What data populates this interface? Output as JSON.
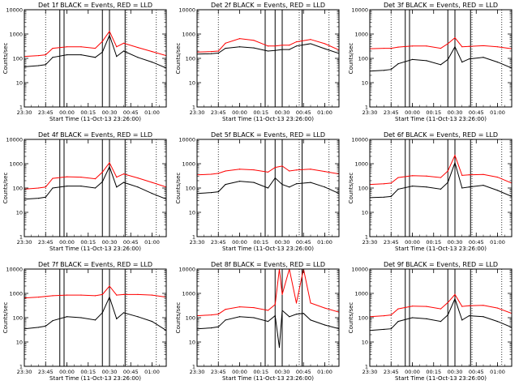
{
  "figure": {
    "ylabel": "Counts/sec",
    "xlabel": "Start Time (11-Oct-13 23:26:00)",
    "x_ticks": [
      "23:30",
      "23:45",
      "00:00",
      "00:15",
      "00:30",
      "00:45",
      "01:00"
    ],
    "y_ticks": [
      "1",
      "10",
      "100",
      "1000",
      "10000"
    ],
    "colors": {
      "events": "#000000",
      "lld": "#ff0000",
      "axes": "#000000"
    }
  },
  "chart_data": [
    {
      "type": "line",
      "title": "Det 1f BLACK = Events, RED = LLD",
      "yscale": "log",
      "ylim": [
        1,
        10000
      ],
      "xlim": [
        "23:30",
        "01:10"
      ],
      "x": [
        "23:30",
        "23:40",
        "23:45",
        "23:50",
        "00:00",
        "00:10",
        "00:20",
        "00:25",
        "00:30",
        "00:35",
        "00:40",
        "00:50",
        "01:00",
        "01:10"
      ],
      "series": [
        {
          "values": [
            45,
            50,
            55,
            110,
            140,
            140,
            110,
            180,
            900,
            120,
            200,
            110,
            70,
            40
          ]
        },
        {
          "values": [
            120,
            130,
            140,
            260,
            300,
            300,
            260,
            500,
            1300,
            300,
            420,
            280,
            190,
            130
          ]
        }
      ],
      "overlays": {
        "vertical_solid": [
          "23:55",
          "23:58",
          "00:25",
          "00:30",
          "00:41"
        ],
        "vertical_dotted": [
          "23:45",
          "00:42",
          "01:03"
        ]
      }
    },
    {
      "type": "line",
      "title": "Det 2f BLACK = Events, RED = LLD",
      "yscale": "log",
      "ylim": [
        1,
        10000
      ],
      "xlim": [
        "23:30",
        "01:10"
      ],
      "x": [
        "23:30",
        "23:40",
        "23:45",
        "23:50",
        "00:00",
        "00:10",
        "00:20",
        "00:25",
        "00:30",
        "00:35",
        "00:40",
        "00:50",
        "01:00",
        "01:10"
      ],
      "series": [
        {
          "values": [
            150,
            155,
            165,
            260,
            300,
            270,
            200,
            210,
            230,
            230,
            320,
            400,
            250,
            160
          ]
        },
        {
          "values": [
            180,
            190,
            200,
            420,
            650,
            550,
            320,
            320,
            350,
            350,
            480,
            600,
            400,
            220
          ]
        }
      ],
      "overlays": {
        "vertical_solid": [
          "00:18",
          "00:25",
          "00:30",
          "00:44"
        ],
        "vertical_dotted": [
          "23:45",
          "00:42",
          "01:03"
        ]
      }
    },
    {
      "type": "line",
      "title": "Det 3f BLACK = Events, RED = LLD",
      "yscale": "log",
      "ylim": [
        1,
        10000
      ],
      "xlim": [
        "23:30",
        "01:10"
      ],
      "x": [
        "23:30",
        "23:40",
        "23:45",
        "23:50",
        "00:00",
        "00:10",
        "00:20",
        "00:25",
        "00:30",
        "00:35",
        "00:40",
        "00:50",
        "01:00",
        "01:10"
      ],
      "series": [
        {
          "values": [
            30,
            32,
            35,
            60,
            90,
            80,
            55,
            90,
            300,
            70,
            95,
            110,
            70,
            40
          ]
        },
        {
          "values": [
            250,
            260,
            260,
            290,
            320,
            320,
            260,
            400,
            700,
            300,
            310,
            330,
            300,
            250
          ]
        }
      ],
      "overlays": {
        "vertical_solid": [
          "23:55",
          "23:58",
          "00:25",
          "00:30",
          "00:41"
        ],
        "vertical_dotted": [
          "23:45",
          "00:42",
          "01:03"
        ]
      }
    },
    {
      "type": "line",
      "title": "Det 4f BLACK = Events, RED = LLD",
      "yscale": "log",
      "ylim": [
        1,
        10000
      ],
      "xlim": [
        "23:30",
        "01:10"
      ],
      "x": [
        "23:30",
        "23:40",
        "23:45",
        "23:50",
        "00:00",
        "00:10",
        "00:20",
        "00:25",
        "00:30",
        "00:35",
        "00:40",
        "00:50",
        "01:00",
        "01:10"
      ],
      "series": [
        {
          "values": [
            35,
            38,
            42,
            100,
            120,
            120,
            100,
            180,
            750,
            110,
            170,
            110,
            60,
            35
          ]
        },
        {
          "values": [
            90,
            100,
            110,
            250,
            290,
            280,
            240,
            450,
            1100,
            280,
            380,
            260,
            170,
            110
          ]
        }
      ],
      "overlays": {
        "vertical_solid": [
          "23:55",
          "23:58",
          "00:25",
          "00:30",
          "00:41"
        ],
        "vertical_dotted": [
          "23:45",
          "00:42",
          "01:03"
        ]
      }
    },
    {
      "type": "line",
      "title": "Det 5f BLACK = Events, RED = LLD",
      "yscale": "log",
      "ylim": [
        1,
        10000
      ],
      "xlim": [
        "23:30",
        "01:10"
      ],
      "x": [
        "23:30",
        "23:40",
        "23:45",
        "23:50",
        "00:00",
        "00:10",
        "00:20",
        "00:25",
        "00:30",
        "00:35",
        "00:40",
        "00:50",
        "01:00",
        "01:10"
      ],
      "series": [
        {
          "values": [
            60,
            65,
            70,
            140,
            190,
            170,
            100,
            260,
            140,
            110,
            150,
            170,
            110,
            60
          ]
        },
        {
          "values": [
            350,
            370,
            400,
            500,
            600,
            560,
            450,
            700,
            800,
            500,
            550,
            600,
            480,
            380
          ]
        }
      ],
      "overlays": {
        "vertical_solid": [
          "00:18",
          "00:25",
          "00:30",
          "00:44"
        ],
        "vertical_dotted": [
          "23:45",
          "00:42",
          "01:03"
        ]
      }
    },
    {
      "type": "line",
      "title": "Det 6f BLACK = Events, RED = LLD",
      "yscale": "log",
      "ylim": [
        1,
        10000
      ],
      "xlim": [
        "23:30",
        "01:10"
      ],
      "x": [
        "23:30",
        "23:40",
        "23:45",
        "23:50",
        "00:00",
        "00:10",
        "00:20",
        "00:25",
        "00:30",
        "00:35",
        "00:40",
        "00:50",
        "01:00",
        "01:10"
      ],
      "series": [
        {
          "values": [
            40,
            42,
            45,
            90,
            120,
            110,
            90,
            170,
            1100,
            100,
            110,
            130,
            80,
            45
          ]
        },
        {
          "values": [
            140,
            150,
            160,
            270,
            320,
            310,
            270,
            500,
            2200,
            330,
            350,
            360,
            280,
            160
          ]
        }
      ],
      "overlays": {
        "vertical_solid": [
          "23:55",
          "23:58",
          "00:25",
          "00:30",
          "00:41"
        ],
        "vertical_dotted": [
          "23:45",
          "00:42",
          "01:03"
        ]
      }
    },
    {
      "type": "line",
      "title": "Det 7f BLACK = Events, RED = LLD",
      "yscale": "log",
      "ylim": [
        1,
        10000
      ],
      "xlim": [
        "23:30",
        "01:10"
      ],
      "x": [
        "23:30",
        "23:40",
        "23:45",
        "23:50",
        "00:00",
        "00:10",
        "00:20",
        "00:25",
        "00:30",
        "00:35",
        "00:40",
        "00:50",
        "01:00",
        "01:10"
      ],
      "series": [
        {
          "values": [
            35,
            40,
            45,
            75,
            110,
            100,
            80,
            160,
            700,
            90,
            160,
            110,
            70,
            30
          ]
        },
        {
          "values": [
            650,
            700,
            750,
            800,
            850,
            850,
            800,
            900,
            2000,
            850,
            900,
            900,
            850,
            700
          ]
        }
      ],
      "overlays": {
        "vertical_solid": [
          "23:55",
          "23:58",
          "00:25",
          "00:30",
          "00:41"
        ],
        "vertical_dotted": [
          "23:45",
          "00:42",
          "01:03"
        ]
      }
    },
    {
      "type": "line",
      "title": "Det 8f BLACK = Events, RED = LLD",
      "yscale": "log",
      "ylim": [
        1,
        10000
      ],
      "xlim": [
        "23:30",
        "01:10"
      ],
      "x": [
        "23:30",
        "23:40",
        "23:45",
        "23:50",
        "00:00",
        "00:10",
        "00:20",
        "00:25",
        "00:28",
        "00:30",
        "00:35",
        "00:40",
        "00:45",
        "00:50",
        "01:00",
        "01:10"
      ],
      "series": [
        {
          "values": [
            35,
            38,
            42,
            80,
            110,
            100,
            70,
            120,
            6,
            200,
            110,
            140,
            150,
            80,
            50,
            35
          ]
        },
        {
          "values": [
            120,
            130,
            140,
            220,
            280,
            260,
            200,
            350,
            10000,
            900,
            10000,
            400,
            10000,
            400,
            250,
            170
          ]
        }
      ],
      "overlays": {
        "vertical_solid": [
          "00:18",
          "00:25",
          "00:30",
          "00:44"
        ],
        "vertical_dotted": [
          "23:45",
          "00:42",
          "01:03"
        ]
      }
    },
    {
      "type": "line",
      "title": "Det 9f BLACK = Events, RED = LLD",
      "yscale": "log",
      "ylim": [
        1,
        10000
      ],
      "xlim": [
        "23:30",
        "01:10"
      ],
      "x": [
        "23:30",
        "23:40",
        "23:45",
        "23:50",
        "00:00",
        "00:10",
        "00:20",
        "00:25",
        "00:30",
        "00:35",
        "00:40",
        "00:50",
        "01:00",
        "01:10"
      ],
      "series": [
        {
          "values": [
            30,
            33,
            35,
            70,
            100,
            90,
            70,
            130,
            600,
            80,
            120,
            110,
            70,
            40
          ]
        },
        {
          "values": [
            110,
            120,
            130,
            230,
            300,
            290,
            230,
            420,
            900,
            290,
            310,
            320,
            250,
            150
          ]
        }
      ],
      "overlays": {
        "vertical_solid": [
          "23:55",
          "23:58",
          "00:25",
          "00:30",
          "00:41"
        ],
        "vertical_dotted": [
          "23:45",
          "00:42",
          "01:03"
        ]
      }
    }
  ]
}
